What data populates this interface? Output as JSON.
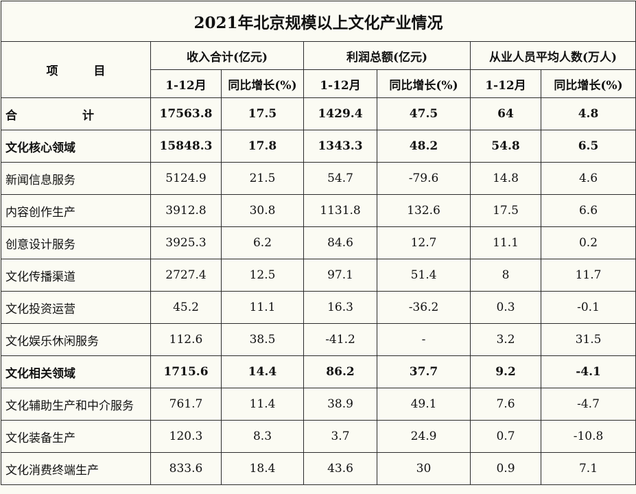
{
  "title": "2021年北京规模以上文化产业情况",
  "header": {
    "item": "项目",
    "item_chars": [
      "项",
      "目"
    ],
    "groups": [
      "收入合计(亿元)",
      "利润总额(亿元)",
      "从业人员平均人数(万人)"
    ],
    "period": "1-12月",
    "growth": "同比增长(%)"
  },
  "total": {
    "name_chars": [
      "合",
      "计"
    ],
    "values": [
      "17563.8",
      "17.5",
      "1429.4",
      "47.5",
      "64",
      "4.8"
    ]
  },
  "rows": [
    {
      "name": "文化核心领域",
      "bold": true,
      "values": [
        "15848.3",
        "17.8",
        "1343.3",
        "48.2",
        "54.8",
        "6.5"
      ]
    },
    {
      "name": "新闻信息服务",
      "bold": false,
      "values": [
        "5124.9",
        "21.5",
        "54.7",
        "-79.6",
        "14.8",
        "4.6"
      ]
    },
    {
      "name": "内容创作生产",
      "bold": false,
      "values": [
        "3912.8",
        "30.8",
        "1131.8",
        "132.6",
        "17.5",
        "6.6"
      ]
    },
    {
      "name": "创意设计服务",
      "bold": false,
      "values": [
        "3925.3",
        "6.2",
        "84.6",
        "12.7",
        "11.1",
        "0.2"
      ]
    },
    {
      "name": "文化传播渠道",
      "bold": false,
      "values": [
        "2727.4",
        "12.5",
        "97.1",
        "51.4",
        "8",
        "11.7"
      ]
    },
    {
      "name": "文化投资运营",
      "bold": false,
      "values": [
        "45.2",
        "11.1",
        "16.3",
        "-36.2",
        "0.3",
        "-0.1"
      ]
    },
    {
      "name": "文化娱乐休闲服务",
      "bold": false,
      "values": [
        "112.6",
        "38.5",
        "-41.2",
        "-",
        "3.2",
        "31.5"
      ]
    },
    {
      "name": "文化相关领域",
      "bold": true,
      "values": [
        "1715.6",
        "14.4",
        "86.2",
        "37.7",
        "9.2",
        "-4.1"
      ]
    },
    {
      "name": "文化辅助生产和中介服务",
      "bold": false,
      "values": [
        "761.7",
        "11.4",
        "38.9",
        "49.1",
        "7.6",
        "-4.7"
      ]
    },
    {
      "name": "文化装备生产",
      "bold": false,
      "values": [
        "120.3",
        "8.3",
        "3.7",
        "24.9",
        "0.7",
        "-10.8"
      ]
    },
    {
      "name": "文化消费终端生产",
      "bold": false,
      "values": [
        "833.6",
        "18.4",
        "43.6",
        "30",
        "0.9",
        "7.1"
      ]
    }
  ]
}
